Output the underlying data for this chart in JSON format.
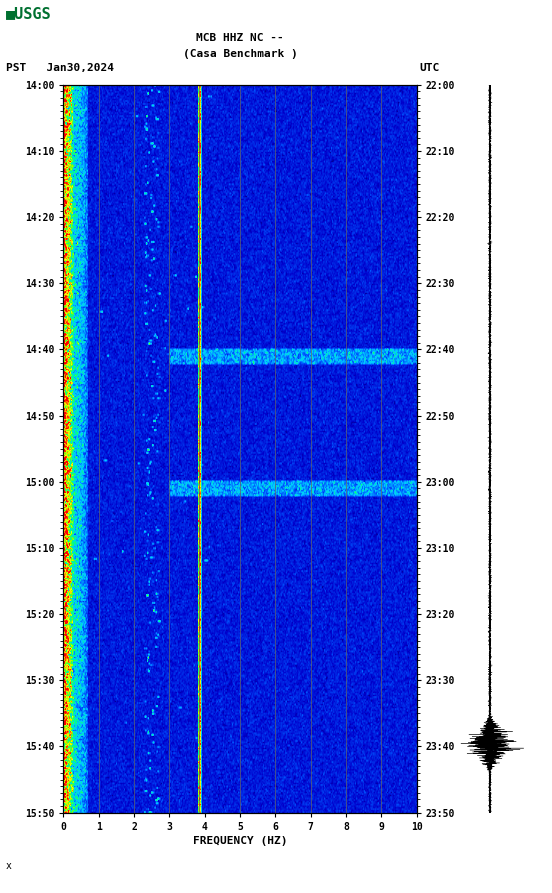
{
  "title_line1": "MCB HHZ NC --",
  "title_line2": "(Casa Benchmark )",
  "left_label": "PST   Jan30,2024",
  "right_label": "UTC",
  "freq_label": "FREQUENCY (HZ)",
  "freq_min": 0,
  "freq_max": 10,
  "freq_ticks": [
    0,
    1,
    2,
    3,
    4,
    5,
    6,
    7,
    8,
    9,
    10
  ],
  "pst_ticks": [
    "14:00",
    "14:10",
    "14:20",
    "14:30",
    "14:40",
    "14:50",
    "15:00",
    "15:10",
    "15:20",
    "15:30",
    "15:40",
    "15:50"
  ],
  "utc_ticks": [
    "22:00",
    "22:10",
    "22:20",
    "22:30",
    "22:40",
    "22:50",
    "23:00",
    "23:10",
    "23:20",
    "23:30",
    "23:40",
    "23:50"
  ],
  "background_color": "#ffffff",
  "spectrogram_bg": "#000080",
  "usgs_green": "#007030",
  "vertical_line_color": "#666666",
  "vertical_line_freq": [
    1,
    2,
    3,
    3.85,
    5,
    6,
    7,
    8,
    9
  ],
  "figsize": [
    5.52,
    8.93
  ],
  "dpi": 100,
  "n_time": 480,
  "n_freq": 400
}
